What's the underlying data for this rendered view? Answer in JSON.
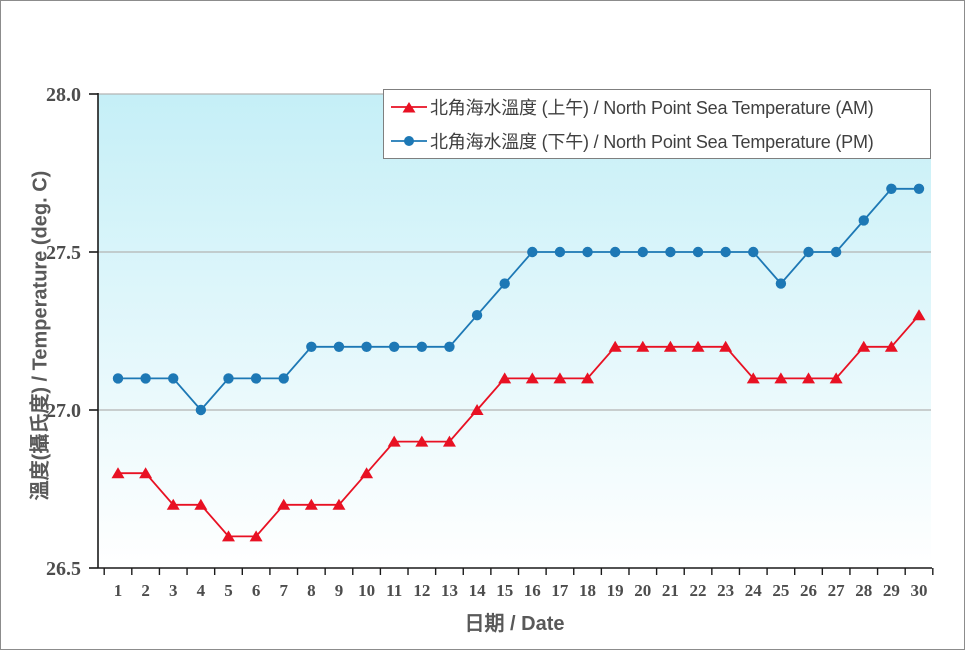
{
  "colors": {
    "am_series": "#e81123",
    "pm_series": "#1d78b5",
    "plot_bg_top": "#c5eff7",
    "plot_bg_bottom": "#ffffff",
    "gridline": "#b3b3b3",
    "axis_line": "#1a1a1a",
    "tick_text": "#4d4d4d",
    "title_text": "#595959",
    "legend_text": "#404040",
    "legend_border": "#7f7f7f",
    "page_border": "#8c8c8c"
  },
  "chart_data": {
    "type": "line",
    "title": "",
    "xlabel": "日期 / Date",
    "ylabel": "溫度(攝氏度) / Temperature (deg. C)",
    "ylim": [
      26.5,
      28.0
    ],
    "yticks": [
      26.5,
      27.0,
      27.5,
      28.0
    ],
    "ytick_labels": [
      "26.5",
      "27.0",
      "27.5",
      "28.0"
    ],
    "grid": true,
    "legend_position": "top-right-inside",
    "categories": [
      "1",
      "2",
      "3",
      "4",
      "5",
      "6",
      "7",
      "8",
      "9",
      "10",
      "11",
      "12",
      "13",
      "14",
      "15",
      "16",
      "17",
      "18",
      "19",
      "20",
      "21",
      "22",
      "23",
      "24",
      "25",
      "26",
      "27",
      "28",
      "29",
      "30"
    ],
    "series": [
      {
        "name": "北角海水溫度 (上午) / North Point Sea Temperature (AM)",
        "marker": "triangle",
        "color": "#e81123",
        "values": [
          26.8,
          26.8,
          26.7,
          26.7,
          26.6,
          26.6,
          26.7,
          26.7,
          26.7,
          26.8,
          26.9,
          26.9,
          26.9,
          27.0,
          27.1,
          27.1,
          27.1,
          27.1,
          27.2,
          27.2,
          27.2,
          27.2,
          27.2,
          27.1,
          27.1,
          27.1,
          27.1,
          27.2,
          27.2,
          27.3
        ]
      },
      {
        "name": "北角海水溫度 (下午) / North Point Sea Temperature (PM)",
        "marker": "circle",
        "color": "#1d78b5",
        "values": [
          27.1,
          27.1,
          27.1,
          27.0,
          27.1,
          27.1,
          27.1,
          27.2,
          27.2,
          27.2,
          27.2,
          27.2,
          27.2,
          27.3,
          27.4,
          27.5,
          27.5,
          27.5,
          27.5,
          27.5,
          27.5,
          27.5,
          27.5,
          27.5,
          27.4,
          27.5,
          27.5,
          27.6,
          27.7,
          27.7
        ]
      }
    ]
  }
}
